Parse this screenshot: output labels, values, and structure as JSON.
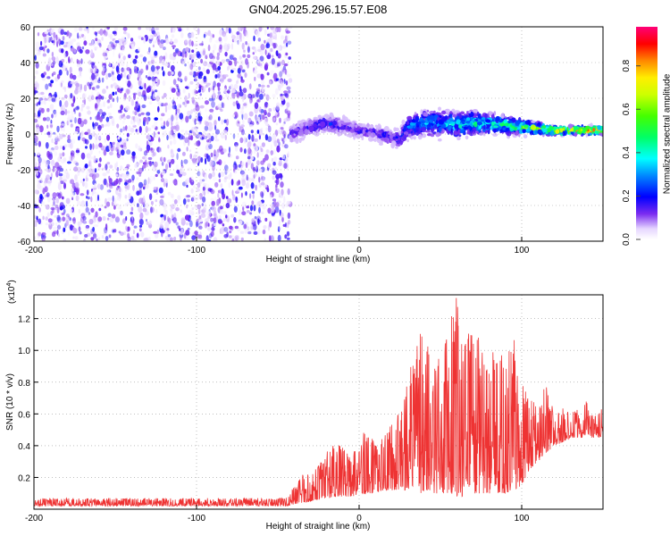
{
  "title": "GN04.2025.296.15.57.E08",
  "colors": {
    "background": "#ffffff",
    "snr_line": "#ee3333",
    "spectrogram_noise": "#7a33e6",
    "colormap": [
      "#ffffff",
      "#e8d9ff",
      "#8a3ffc",
      "#4b1fe0",
      "#0000ff",
      "#00aaff",
      "#00ffff",
      "#00ff66",
      "#66ff00",
      "#ffff00",
      "#ff8800",
      "#ff0000",
      "#ff0088"
    ]
  },
  "chart_data": [
    {
      "type": "heatmap",
      "title": "GN04.2025.296.15.57.E08",
      "xlabel": "Height of straight line (km)",
      "ylabel": "Frequency (Hz)",
      "xlim": [
        -200,
        150
      ],
      "ylim": [
        -60,
        60
      ],
      "x_ticks": [
        -200,
        -100,
        0,
        100
      ],
      "y_ticks": [
        -60,
        -40,
        -20,
        0,
        20,
        40,
        60
      ],
      "noise_region_x": [
        -200,
        -42
      ],
      "ridge": {
        "x": [
          -42,
          -30,
          -20,
          -10,
          0,
          10,
          20,
          25,
          30,
          40,
          50,
          60,
          70,
          80,
          90,
          100,
          110,
          120,
          130,
          140,
          150
        ],
        "freq": [
          0,
          4,
          6,
          4,
          2,
          1,
          -2,
          -3,
          4,
          6,
          6,
          5,
          6,
          6,
          5,
          4,
          3,
          2,
          2,
          2,
          2
        ],
        "spread": [
          7,
          6,
          6,
          6,
          6,
          6,
          6,
          6,
          9,
          10,
          10,
          10,
          9,
          8,
          7,
          6,
          4,
          3,
          3,
          3,
          3
        ],
        "amplitude": [
          0.15,
          0.2,
          0.22,
          0.18,
          0.18,
          0.18,
          0.2,
          0.22,
          0.3,
          0.35,
          0.35,
          0.4,
          0.45,
          0.45,
          0.5,
          0.55,
          0.7,
          0.85,
          0.9,
          0.9,
          0.9
        ]
      },
      "colorbar": {
        "label": "Normalized spectral amplitude",
        "ticks": [
          0.0,
          0.2,
          0.4,
          0.6,
          0.8
        ],
        "tick_labels": [
          "0.0",
          "0.2",
          "0.4",
          "0.6",
          "0.8"
        ],
        "range": [
          0,
          0.98
        ]
      },
      "grid": true
    },
    {
      "type": "line",
      "title": "",
      "xlabel": "Height of straight line (km)",
      "ylabel": "SNR (10 * v/v)",
      "y_scale_label": "(x10",
      "y_scale_exp": "4",
      "y_scale_close": ")",
      "xlim": [
        -200,
        150
      ],
      "ylim": [
        0,
        1.35
      ],
      "x_ticks": [
        -200,
        -100,
        0,
        100
      ],
      "y_ticks": [
        0.2,
        0.4,
        0.6,
        0.8,
        1.0,
        1.2
      ],
      "y_tick_labels": [
        "0.2",
        "0.4",
        "0.6",
        "0.8",
        "1.0",
        "1.2"
      ],
      "envelope": {
        "x": [
          -200,
          -150,
          -100,
          -45,
          -35,
          -25,
          -15,
          -5,
          0,
          5,
          10,
          15,
          20,
          25,
          30,
          35,
          40,
          45,
          50,
          55,
          60,
          65,
          70,
          75,
          80,
          85,
          90,
          95,
          100,
          105,
          110,
          115,
          120,
          125,
          130,
          135,
          140,
          145,
          150
        ],
        "max": [
          0.07,
          0.07,
          0.07,
          0.07,
          0.22,
          0.3,
          0.43,
          0.35,
          0.4,
          0.55,
          0.4,
          0.45,
          0.58,
          0.6,
          0.86,
          1.1,
          1.2,
          0.85,
          1.0,
          1.25,
          1.34,
          1.05,
          1.28,
          1.0,
          0.95,
          1.05,
          0.9,
          1.12,
          0.8,
          0.7,
          0.72,
          0.8,
          0.6,
          0.65,
          0.6,
          0.65,
          0.68,
          0.6,
          0.65
        ],
        "min": [
          0.02,
          0.02,
          0.02,
          0.02,
          0.04,
          0.06,
          0.08,
          0.08,
          0.09,
          0.1,
          0.1,
          0.12,
          0.12,
          0.12,
          0.12,
          0.1,
          0.1,
          0.1,
          0.1,
          0.1,
          0.08,
          0.08,
          0.1,
          0.1,
          0.1,
          0.1,
          0.1,
          0.12,
          0.15,
          0.25,
          0.3,
          0.35,
          0.4,
          0.42,
          0.45,
          0.45,
          0.45,
          0.45,
          0.45
        ]
      },
      "grid": true
    }
  ]
}
